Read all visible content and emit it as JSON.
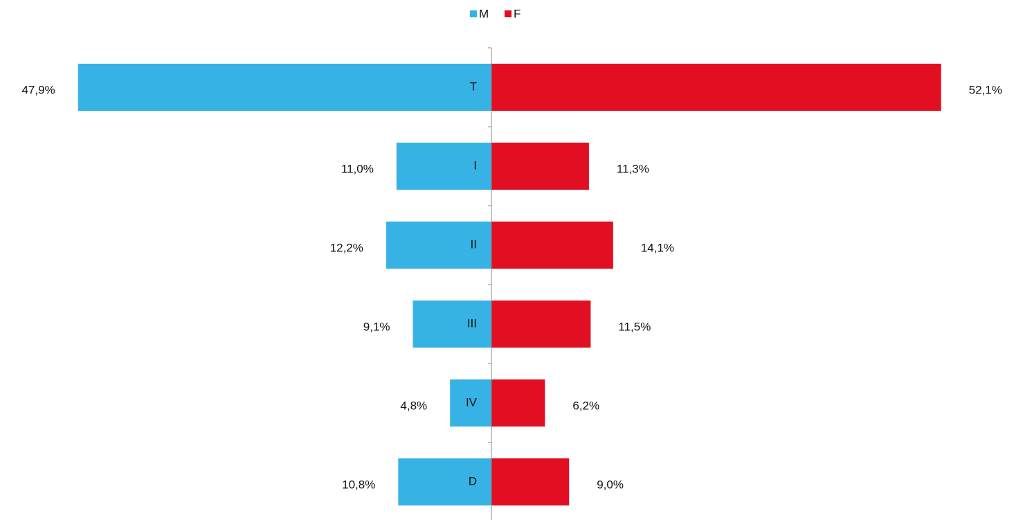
{
  "chart_data": {
    "type": "butterfly-bar",
    "categories": [
      "T",
      "I",
      "II",
      "III",
      "IV",
      "D"
    ],
    "series": [
      {
        "name": "M",
        "color": "#36b2e4",
        "values": [
          47.9,
          11.0,
          12.2,
          9.1,
          4.8,
          10.8
        ],
        "value_labels": [
          "47,9%",
          "11,0%",
          "12,2%",
          "9,1%",
          "4,8%",
          "10,8%"
        ]
      },
      {
        "name": "F",
        "color": "#e10f21",
        "values": [
          52.1,
          11.3,
          14.1,
          11.5,
          6.2,
          9.0
        ],
        "value_labels": [
          "52,1%",
          "11,3%",
          "14,1%",
          "11,5%",
          "6,2%",
          "9,0%"
        ]
      }
    ]
  }
}
